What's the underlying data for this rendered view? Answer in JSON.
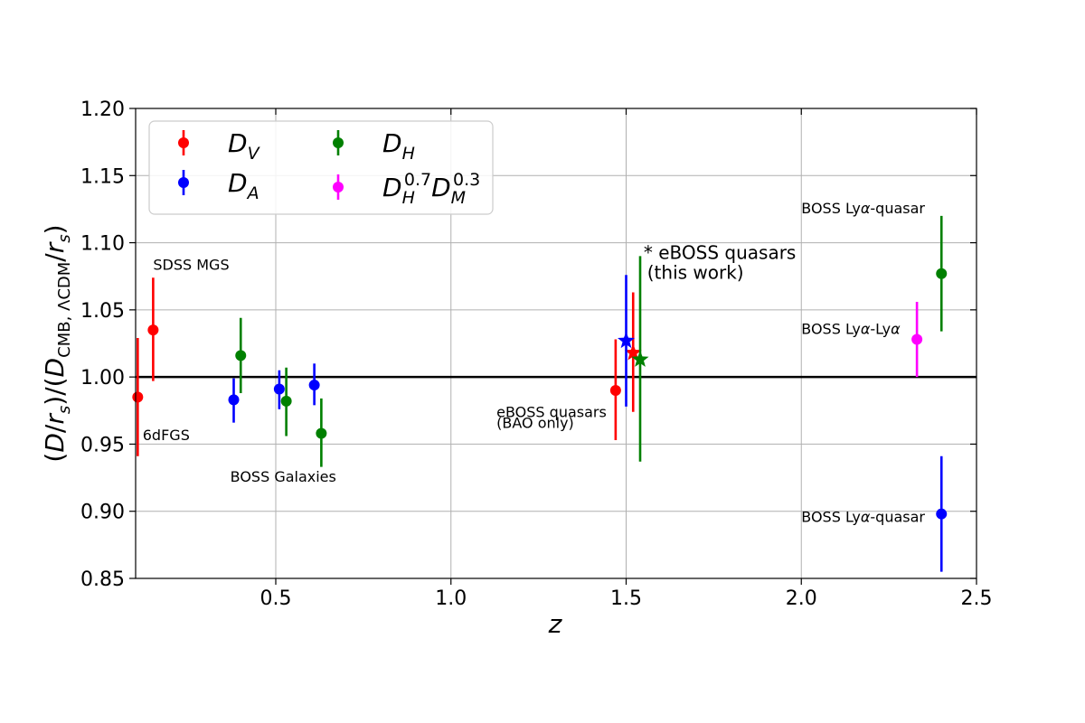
{
  "chart_data": {
    "type": "scatter",
    "xlabel": "z",
    "ylabel": "(D/r_s)/(D_CMB,ΛCDM/r_s)",
    "xlim": [
      0.1,
      2.5
    ],
    "ylim": [
      0.85,
      1.2
    ],
    "xticks": [
      "0.5",
      "1.0",
      "1.5",
      "2.0",
      "2.5"
    ],
    "yticks": [
      "0.85",
      "0.90",
      "0.95",
      "1.00",
      "1.05",
      "1.10",
      "1.15",
      "1.20"
    ],
    "grid": true,
    "reference_line": 1.0,
    "legend_position": "top-left",
    "series": [
      {
        "name": "D_V",
        "color": "#ff0000",
        "points": [
          {
            "x": 0.106,
            "y": 0.985,
            "lo": 0.941,
            "hi": 1.029
          },
          {
            "x": 0.15,
            "y": 1.035,
            "lo": 0.997,
            "hi": 1.074
          },
          {
            "x": 1.47,
            "y": 0.99,
            "lo": 0.953,
            "hi": 1.028
          },
          {
            "x": 1.52,
            "y": 1.018,
            "lo": 0.974,
            "hi": 1.063,
            "marker": "star"
          }
        ]
      },
      {
        "name": "D_A",
        "color": "#0000ff",
        "points": [
          {
            "x": 0.38,
            "y": 0.983,
            "lo": 0.966,
            "hi": 0.999
          },
          {
            "x": 0.51,
            "y": 0.991,
            "lo": 0.976,
            "hi": 1.005
          },
          {
            "x": 0.61,
            "y": 0.994,
            "lo": 0.979,
            "hi": 1.01
          },
          {
            "x": 1.5,
            "y": 1.027,
            "lo": 0.978,
            "hi": 1.076,
            "marker": "star"
          },
          {
            "x": 2.4,
            "y": 0.898,
            "lo": 0.855,
            "hi": 0.941
          }
        ]
      },
      {
        "name": "D_H",
        "color": "#008000",
        "points": [
          {
            "x": 0.4,
            "y": 1.016,
            "lo": 0.988,
            "hi": 1.044
          },
          {
            "x": 0.53,
            "y": 0.982,
            "lo": 0.956,
            "hi": 1.007
          },
          {
            "x": 0.63,
            "y": 0.958,
            "lo": 0.933,
            "hi": 0.984
          },
          {
            "x": 1.54,
            "y": 1.013,
            "lo": 0.937,
            "hi": 1.09,
            "marker": "star"
          },
          {
            "x": 2.4,
            "y": 1.077,
            "lo": 1.034,
            "hi": 1.12
          }
        ]
      },
      {
        "name": "D_H^0.7 D_M^0.3",
        "color": "#ff00ff",
        "points": [
          {
            "x": 2.33,
            "y": 1.028,
            "lo": 1.0,
            "hi": 1.056
          }
        ]
      }
    ],
    "annotations": [
      {
        "text": "SDSS MGS",
        "x": 0.15,
        "y": 1.08
      },
      {
        "text": "6dFGS",
        "x": 0.12,
        "y": 0.953
      },
      {
        "text": "BOSS Galaxies",
        "x": 0.37,
        "y": 0.922
      },
      {
        "text": "eBOSS quasars",
        "x": 1.13,
        "y": 0.97
      },
      {
        "text": "(BAO only)",
        "x": 1.13,
        "y": 0.962
      },
      {
        "text": "* eBOSS quasars",
        "x": 1.55,
        "y": 1.088
      },
      {
        "text": "(this work)",
        "x": 1.56,
        "y": 1.073
      },
      {
        "text": "BOSS Lyα-quasar",
        "x": 2.0,
        "y": 1.122
      },
      {
        "text": "BOSS Lyα-Lyα",
        "x": 2.0,
        "y": 1.032
      },
      {
        "text": "BOSS Lyα-quasar",
        "x": 2.0,
        "y": 0.892
      }
    ]
  }
}
